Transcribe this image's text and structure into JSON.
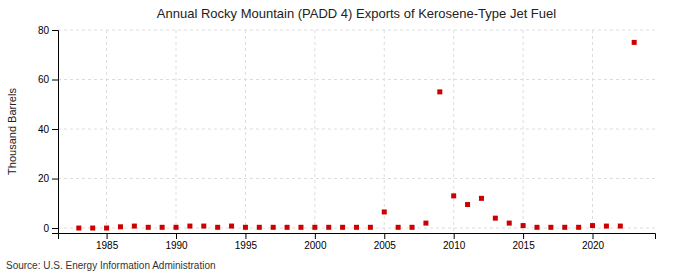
{
  "chart_data": {
    "type": "scatter",
    "title": "Annual Rocky Mountain (PADD 4) Exports of Kerosene-Type Jet Fuel",
    "ylabel": "Thousand Barrels",
    "annotations": [
      "Source: U.S. Energy Information Administration"
    ],
    "x": [
      1983,
      1984,
      1985,
      1986,
      1987,
      1988,
      1989,
      1990,
      1991,
      1992,
      1993,
      1994,
      1995,
      1996,
      1997,
      1998,
      1999,
      2000,
      2001,
      2002,
      2003,
      2004,
      2005,
      2006,
      2007,
      2008,
      2009,
      2010,
      2011,
      2012,
      2013,
      2014,
      2015,
      2016,
      2017,
      2018,
      2019,
      2020,
      2021,
      2022,
      2023
    ],
    "values": [
      0,
      0,
      0,
      0.5,
      0.8,
      0.3,
      0.3,
      0.3,
      0.8,
      0.8,
      0.3,
      0.8,
      0.3,
      0.3,
      0.3,
      0.3,
      0.3,
      0.3,
      0.3,
      0.3,
      0.3,
      0.3,
      6.5,
      0.3,
      0.3,
      2.0,
      55.0,
      13.0,
      9.5,
      12.0,
      4.0,
      2.0,
      1.0,
      0.3,
      0.3,
      0.3,
      0.3,
      1.0,
      0.8,
      0.8,
      75.0
    ],
    "color": "#cc0000",
    "marker": "square",
    "xlim": [
      1981.5,
      2024.5
    ],
    "xticks": [
      1985,
      1990,
      1995,
      2000,
      2005,
      2010,
      2015,
      2020
    ],
    "ylim": [
      -2,
      80
    ],
    "yticks": [
      0,
      20,
      40,
      60,
      80
    ],
    "grid": true
  }
}
